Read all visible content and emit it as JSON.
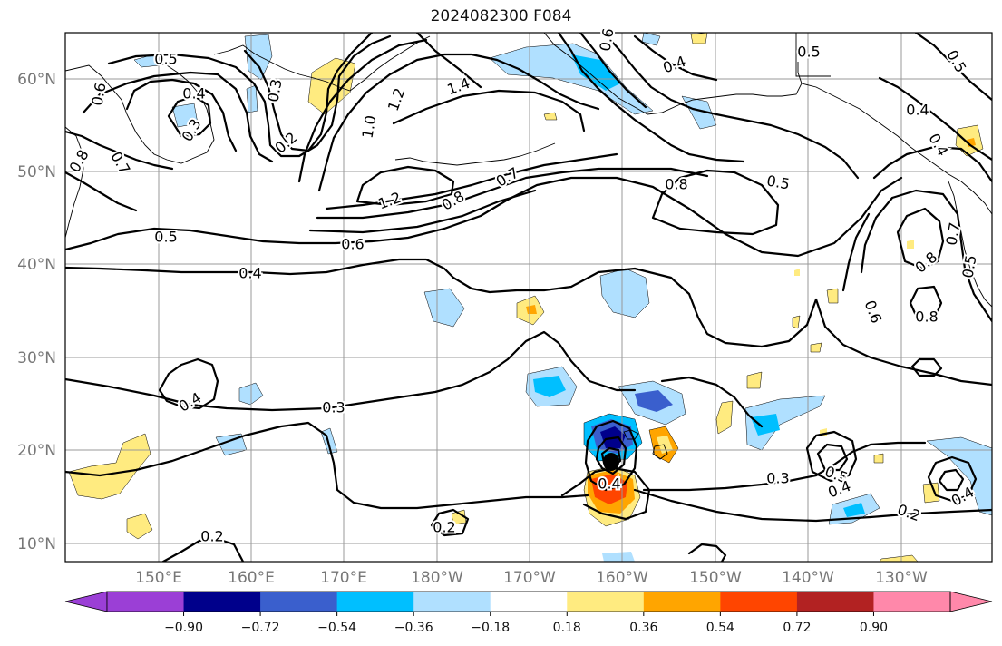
{
  "title": "2024082300 F084",
  "lat_labels": [
    "60°N",
    "50°N",
    "40°N",
    "30°N",
    "20°N",
    "10°N"
  ],
  "lon_labels": [
    "150°E",
    "160°E",
    "170°E",
    "180°W",
    "170°W",
    "160°W",
    "150°W",
    "140°W",
    "130°W"
  ],
  "colorbar": {
    "ticks": [
      "−0.90",
      "−0.72",
      "−0.54",
      "−0.36",
      "−0.18",
      "0.18",
      "0.36",
      "0.54",
      "0.72",
      "0.90"
    ],
    "colors": {
      "under": "#9b3fd6",
      "bins": [
        "#9b3fd6",
        "#00008b",
        "#3a5fcd",
        "#00bfff",
        "#b0e0ff",
        "#ffffff",
        "#ffeb80",
        "#ffa500",
        "#ff4500",
        "#b22222",
        "#ff88aa"
      ],
      "over": "#ff88aa"
    }
  },
  "contour_labels": [
    {
      "text": "0.5"
    },
    {
      "text": "0.4"
    },
    {
      "text": "0.3"
    },
    {
      "text": "0.6"
    },
    {
      "text": "0.8"
    },
    {
      "text": "0.7"
    },
    {
      "text": "0.2"
    },
    {
      "text": "0.3"
    },
    {
      "text": "1.0"
    },
    {
      "text": "1.2"
    },
    {
      "text": "1.4"
    },
    {
      "text": "0.5"
    },
    {
      "text": "0.4"
    },
    {
      "text": "0.6"
    },
    {
      "text": "0.5"
    },
    {
      "text": "0.4"
    },
    {
      "text": "0.4"
    },
    {
      "text": "1.2"
    },
    {
      "text": "0.8"
    },
    {
      "text": "0.7"
    },
    {
      "text": "0.8"
    },
    {
      "text": "0.5"
    },
    {
      "text": "0.5"
    },
    {
      "text": "0.6"
    },
    {
      "text": "0.4"
    },
    {
      "text": "0.7"
    },
    {
      "text": "0.8"
    },
    {
      "text": "0.5"
    },
    {
      "text": "0.6"
    },
    {
      "text": "0.8"
    },
    {
      "text": "0.4"
    },
    {
      "text": "0.3"
    },
    {
      "text": "0.4"
    },
    {
      "text": "0.3"
    },
    {
      "text": "0.5"
    },
    {
      "text": "0.4"
    },
    {
      "text": "0.4"
    },
    {
      "text": "0.2"
    },
    {
      "text": "0.2"
    },
    {
      "text": "0.2"
    }
  ]
}
